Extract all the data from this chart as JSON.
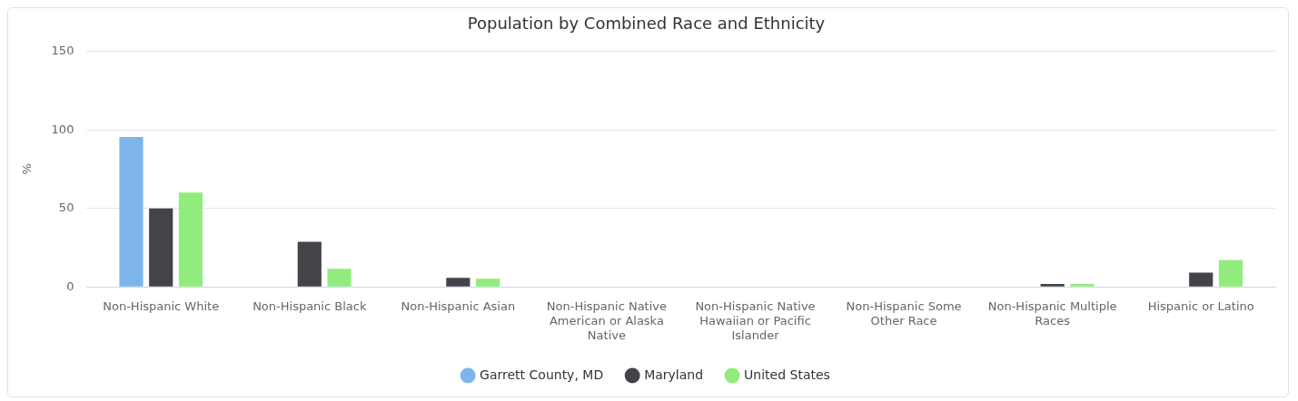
{
  "chart_data": {
    "type": "bar",
    "title": "Population by Combined Race and Ethnicity",
    "ylabel": "%",
    "categories": [
      "Non-Hispanic White",
      "Non-Hispanic Black",
      "Non-Hispanic Asian",
      "Non-Hispanic Native American or Alaska Native",
      "Non-Hispanic Native Hawaiian or Pacific Islander",
      "Non-Hispanic Some Other Race",
      "Non-Hispanic Multiple Races",
      "Hispanic or Latino"
    ],
    "series": [
      {
        "name": "Garrett County, MD",
        "color": "#7cb5ec",
        "values": [
          95.5,
          0,
          0,
          0,
          0,
          0,
          0,
          0
        ]
      },
      {
        "name": "Maryland",
        "color": "#434348",
        "values": [
          50,
          28.7,
          5.7,
          0,
          0,
          0,
          1.8,
          9.1
        ]
      },
      {
        "name": "United States",
        "color": "#90ed7d",
        "values": [
          60,
          11.5,
          5.1,
          0,
          0,
          0,
          1.8,
          17.2
        ]
      }
    ],
    "ylim": [
      0,
      150
    ],
    "yticks": [
      0,
      50,
      100,
      150
    ],
    "grid": "y",
    "legend": "bottom"
  }
}
